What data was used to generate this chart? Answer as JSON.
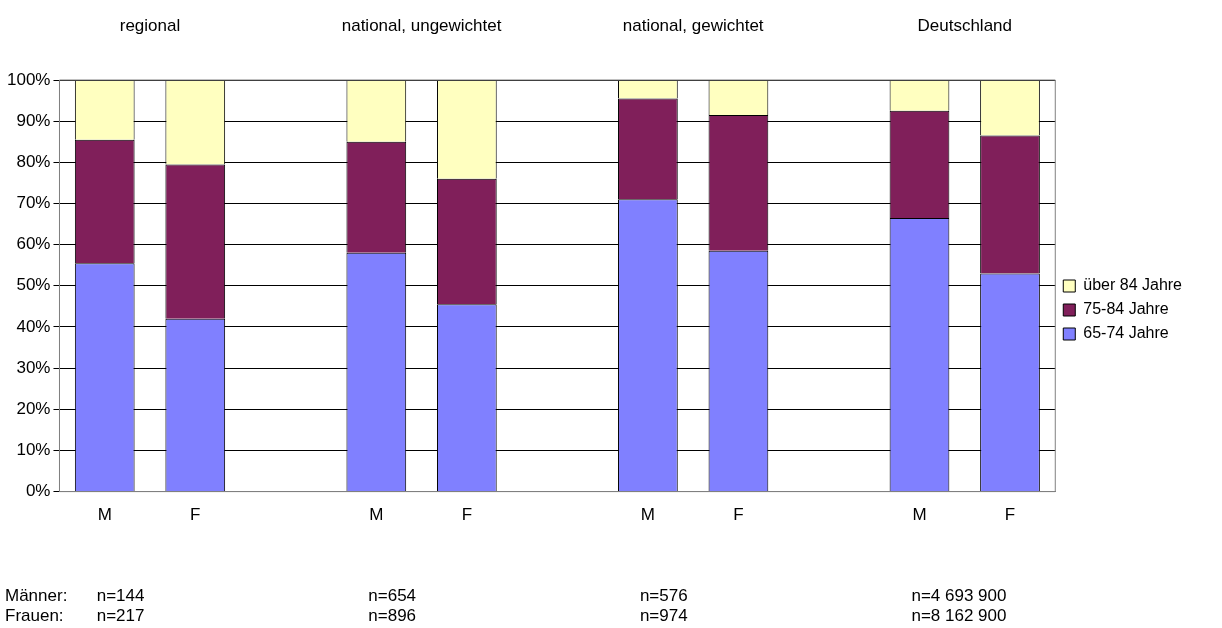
{
  "chart_data": {
    "type": "bar",
    "stacked": true,
    "categories": [
      "M",
      "F",
      null,
      "M",
      "F",
      null,
      "M",
      "F",
      null,
      "M",
      "F"
    ],
    "series": [
      {
        "name": "65-74 Jahre",
        "color": "#8080ff",
        "values": [
          55.5,
          42,
          null,
          58,
          45.5,
          null,
          71,
          58.5,
          null,
          66.5,
          53
        ]
      },
      {
        "name": "75-84 Jahre",
        "color": "#801f5a",
        "values": [
          30,
          37.5,
          null,
          27,
          30.5,
          null,
          24.5,
          33,
          null,
          26,
          33.5
        ]
      },
      {
        "name": "über 84 Jahre",
        "color": "#ffffc0",
        "values": [
          14.5,
          20.5,
          null,
          15,
          24,
          null,
          4.5,
          8.5,
          null,
          7.5,
          13.5
        ]
      }
    ],
    "ylim": [
      0,
      100
    ],
    "yticks": [
      {
        "value": 0,
        "label": "0%"
      },
      {
        "value": 10,
        "label": "10%"
      },
      {
        "value": 20,
        "label": "20%"
      },
      {
        "value": 30,
        "label": "30%"
      },
      {
        "value": 40,
        "label": "40%"
      },
      {
        "value": 50,
        "label": "50%"
      },
      {
        "value": 60,
        "label": "60%"
      },
      {
        "value": 70,
        "label": "70%"
      },
      {
        "value": 80,
        "label": "80%"
      },
      {
        "value": 90,
        "label": "90%"
      },
      {
        "value": 100,
        "label": "100%"
      }
    ],
    "grid": "y",
    "legend": "right",
    "annotations": [
      "regional",
      "national, ungewichtet",
      "national, gewichtet",
      "Deutschland",
      "Männer:",
      "Frauen:",
      "n=144",
      "n=217",
      "n=654",
      "n=896",
      "n=576",
      "n=974",
      "n=4 693 900",
      "n=8 162 900"
    ]
  }
}
